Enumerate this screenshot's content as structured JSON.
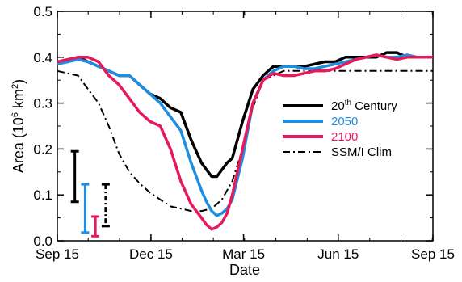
{
  "chart_data": {
    "type": "line",
    "title": "",
    "xlabel": "Date",
    "ylabel": "Area (10",
    "ylabel_sup": "6",
    "ylabel_tail": " km",
    "ylabel_sup2": "2",
    "ylabel_close": ")",
    "xlim": [
      0,
      365
    ],
    "ylim": [
      0,
      0.5
    ],
    "x_unit": "days since Sep 15",
    "xticks": [
      {
        "x": 0,
        "label": "Sep 15"
      },
      {
        "x": 91,
        "label": "Dec 15"
      },
      {
        "x": 181,
        "label": "Mar 15"
      },
      {
        "x": 273,
        "label": "Jun 15"
      },
      {
        "x": 365,
        "label": "Sep 15"
      }
    ],
    "yticks": [
      {
        "y": 0.0,
        "label": "0.0"
      },
      {
        "y": 0.1,
        "label": "0.1"
      },
      {
        "y": 0.2,
        "label": "0.2"
      },
      {
        "y": 0.3,
        "label": "0.3"
      },
      {
        "y": 0.4,
        "label": "0.4"
      },
      {
        "y": 0.5,
        "label": "0.5"
      }
    ],
    "grid": false,
    "legend_position": "right",
    "series": [
      {
        "name": "20th Century",
        "color": "#000000",
        "dash": "solid",
        "x": [
          0,
          10,
          20,
          30,
          40,
          50,
          60,
          70,
          80,
          90,
          100,
          110,
          120,
          130,
          140,
          145,
          150,
          155,
          160,
          165,
          170,
          180,
          190,
          200,
          210,
          220,
          230,
          240,
          250,
          260,
          270,
          280,
          290,
          300,
          310,
          320,
          330,
          340,
          350,
          365
        ],
        "y": [
          0.39,
          0.39,
          0.4,
          0.39,
          0.38,
          0.37,
          0.36,
          0.36,
          0.34,
          0.32,
          0.31,
          0.29,
          0.28,
          0.22,
          0.17,
          0.155,
          0.14,
          0.14,
          0.155,
          0.17,
          0.18,
          0.26,
          0.33,
          0.36,
          0.38,
          0.38,
          0.38,
          0.38,
          0.385,
          0.39,
          0.39,
          0.4,
          0.4,
          0.4,
          0.4,
          0.41,
          0.41,
          0.4,
          0.4,
          0.4
        ]
      },
      {
        "name": "2050",
        "color": "#1f8ee0",
        "dash": "solid",
        "x": [
          0,
          10,
          20,
          30,
          40,
          50,
          60,
          70,
          80,
          90,
          100,
          110,
          120,
          130,
          140,
          145,
          150,
          155,
          160,
          165,
          170,
          180,
          190,
          200,
          210,
          220,
          230,
          240,
          250,
          260,
          270,
          280,
          290,
          300,
          310,
          320,
          330,
          340,
          350,
          365
        ],
        "y": [
          0.385,
          0.39,
          0.395,
          0.39,
          0.38,
          0.37,
          0.36,
          0.36,
          0.34,
          0.32,
          0.3,
          0.27,
          0.24,
          0.17,
          0.11,
          0.085,
          0.065,
          0.055,
          0.06,
          0.07,
          0.09,
          0.18,
          0.3,
          0.35,
          0.37,
          0.38,
          0.38,
          0.375,
          0.375,
          0.38,
          0.385,
          0.39,
          0.395,
          0.4,
          0.405,
          0.4,
          0.4,
          0.405,
          0.4,
          0.4
        ]
      },
      {
        "name": "2100",
        "color": "#e8195a",
        "dash": "solid",
        "x": [
          0,
          10,
          20,
          30,
          40,
          50,
          60,
          70,
          80,
          90,
          100,
          110,
          120,
          130,
          140,
          145,
          150,
          155,
          160,
          165,
          170,
          180,
          190,
          200,
          210,
          220,
          230,
          240,
          250,
          260,
          270,
          280,
          290,
          300,
          310,
          320,
          330,
          340,
          350,
          365
        ],
        "y": [
          0.39,
          0.395,
          0.4,
          0.4,
          0.39,
          0.36,
          0.34,
          0.31,
          0.28,
          0.26,
          0.25,
          0.2,
          0.13,
          0.08,
          0.05,
          0.035,
          0.025,
          0.03,
          0.04,
          0.06,
          0.1,
          0.2,
          0.3,
          0.35,
          0.365,
          0.36,
          0.36,
          0.365,
          0.37,
          0.37,
          0.375,
          0.385,
          0.395,
          0.4,
          0.405,
          0.4,
          0.395,
          0.4,
          0.4,
          0.4
        ]
      },
      {
        "name": "SSM/I Clim",
        "color": "#000000",
        "dash": "dashdot",
        "x": [
          0,
          10,
          20,
          30,
          40,
          50,
          60,
          70,
          80,
          90,
          100,
          110,
          120,
          130,
          140,
          150,
          160,
          170,
          180,
          190,
          200,
          210,
          220,
          230,
          240,
          250,
          260,
          270,
          280,
          290,
          300,
          310,
          320,
          330,
          340,
          350,
          365
        ],
        "y": [
          0.37,
          0.365,
          0.36,
          0.33,
          0.3,
          0.25,
          0.19,
          0.15,
          0.125,
          0.105,
          0.09,
          0.075,
          0.07,
          0.065,
          0.065,
          0.07,
          0.09,
          0.13,
          0.2,
          0.29,
          0.35,
          0.36,
          0.37,
          0.37,
          0.37,
          0.37,
          0.37,
          0.37,
          0.37,
          0.37,
          0.37,
          0.37,
          0.37,
          0.37,
          0.37,
          0.37,
          0.37
        ]
      }
    ],
    "error_bars": [
      {
        "series": "20th Century",
        "color": "#000000",
        "x": 17,
        "low": 0.085,
        "high": 0.195
      },
      {
        "series": "2050",
        "color": "#1f8ee0",
        "x": 27,
        "low": 0.018,
        "high": 0.123
      },
      {
        "series": "2100",
        "color": "#e8195a",
        "x": 37,
        "low": 0.01,
        "high": 0.053
      },
      {
        "series": "SSM/I Clim",
        "color": "#000000",
        "x": 47,
        "low": 0.032,
        "high": 0.123,
        "dashed": true
      }
    ]
  }
}
